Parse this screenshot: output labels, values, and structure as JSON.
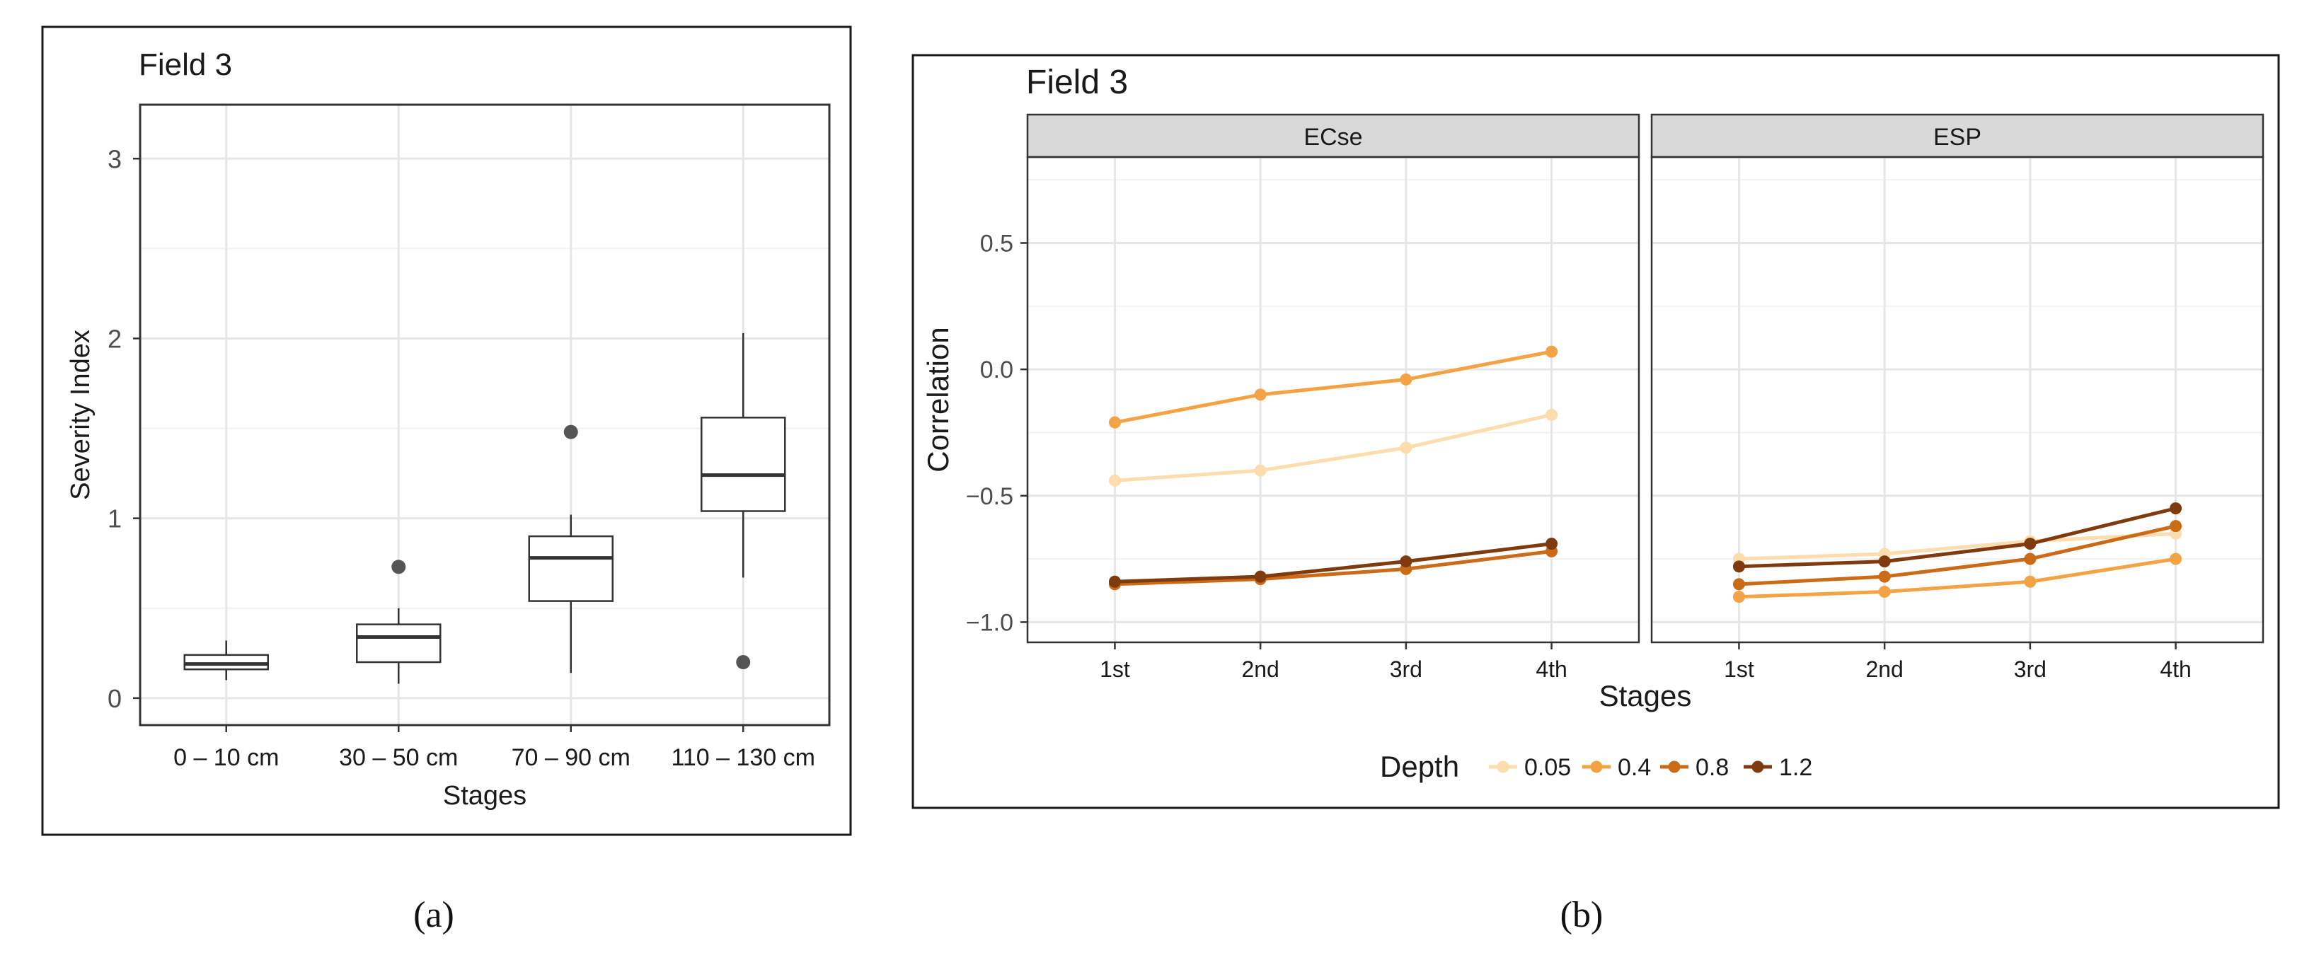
{
  "panel_a": {
    "caption": "(a)",
    "title": "Field 3"
  },
  "panel_b": {
    "caption": "(b)",
    "title": "Field 3"
  },
  "chart_data": [
    {
      "type": "box",
      "title": "Field 3",
      "xlabel": "Stages",
      "ylabel": "Severity Index",
      "ylim": [
        -0.15,
        3.3
      ],
      "yticks": [
        0,
        1,
        2,
        3
      ],
      "categories": [
        "0 – 10 cm",
        "30 – 50 cm",
        "70 – 90 cm",
        "110 – 130 cm"
      ],
      "boxes": [
        {
          "min": 0.1,
          "q1": 0.16,
          "median": 0.19,
          "q3": 0.24,
          "max": 0.32,
          "outliers": []
        },
        {
          "min": 0.08,
          "q1": 0.2,
          "median": 0.34,
          "q3": 0.41,
          "max": 0.5,
          "outliers": [
            0.73
          ]
        },
        {
          "min": 0.14,
          "q1": 0.54,
          "median": 0.78,
          "q3": 0.9,
          "max": 1.02,
          "outliers": [
            1.48
          ]
        },
        {
          "min": 0.67,
          "q1": 1.04,
          "median": 1.24,
          "q3": 1.56,
          "max": 2.03,
          "outliers": [
            0.2
          ]
        }
      ]
    },
    {
      "type": "line",
      "title": "Field 3",
      "xlabel": "Stages",
      "ylabel": "Correlation",
      "ylim": [
        -1.08,
        0.84
      ],
      "yticks": [
        {
          "value": 0.5,
          "label": "0.5"
        },
        {
          "value": 0.0,
          "label": "0.0"
        },
        {
          "value": -0.5,
          "label": "−0.5"
        },
        {
          "value": -1.0,
          "label": "−1.0"
        }
      ],
      "categories": [
        "1st",
        "2nd",
        "3rd",
        "4th"
      ],
      "legend_title": "Depth",
      "legend_position": "bottom",
      "facets": [
        {
          "label": "ECse",
          "series": [
            {
              "name": "0.05",
              "color": "#fddcae",
              "values": [
                -0.44,
                -0.4,
                -0.31,
                -0.18
              ]
            },
            {
              "name": "0.4",
              "color": "#f4a344",
              "values": [
                -0.21,
                -0.1,
                -0.04,
                0.07
              ]
            },
            {
              "name": "0.8",
              "color": "#cc6b17",
              "values": [
                -0.85,
                -0.83,
                -0.79,
                -0.72
              ]
            },
            {
              "name": "1.2",
              "color": "#7f3a0d",
              "values": [
                -0.84,
                -0.82,
                -0.76,
                -0.69
              ]
            }
          ]
        },
        {
          "label": "ESP",
          "series": [
            {
              "name": "0.05",
              "color": "#fddcae",
              "values": [
                -0.75,
                -0.73,
                -0.68,
                -0.65
              ]
            },
            {
              "name": "0.4",
              "color": "#f4a344",
              "values": [
                -0.9,
                -0.88,
                -0.84,
                -0.75
              ]
            },
            {
              "name": "0.8",
              "color": "#cc6b17",
              "values": [
                -0.85,
                -0.82,
                -0.75,
                -0.62
              ]
            },
            {
              "name": "1.2",
              "color": "#7f3a0d",
              "values": [
                -0.78,
                -0.76,
                -0.69,
                -0.55
              ]
            }
          ]
        }
      ]
    }
  ]
}
